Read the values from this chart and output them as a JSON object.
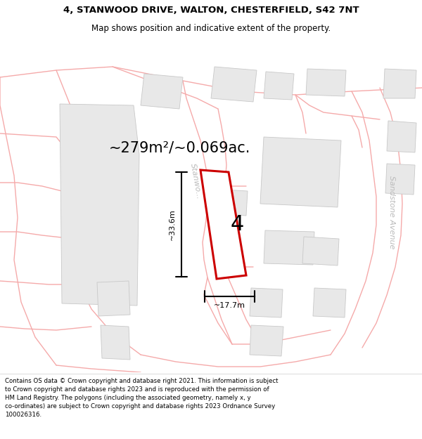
{
  "title_line1": "4, STANWOOD DRIVE, WALTON, CHESTERFIELD, S42 7NT",
  "title_line2": "Map shows position and indicative extent of the property.",
  "area_text": "~279m²/~0.069ac.",
  "measurement_v": "~33.6m",
  "measurement_h": "~17.7m",
  "plot_number": "4",
  "road_label_stanwood": "Stanwo...",
  "road_label_sandstone": "Sandstone Avenue",
  "plot_outline_color": "#cc0000",
  "road_line_color": "#f5aaaa",
  "road_line_color2": "#e8e8e8",
  "building_fill_color": "#e8e8e8",
  "building_outline_color": "#c8c8c8",
  "map_bg": "#ffffff",
  "title_bg": "#ffffff",
  "footer_bg": "#ffffff",
  "footer_lines": [
    "Contains OS data © Crown copyright and database right 2021. This information is subject",
    "to Crown copyright and database rights 2023 and is reproduced with the permission of",
    "HM Land Registry. The polygons (including the associated geometry, namely x, y",
    "co-ordinates) are subject to Crown copyright and database rights 2023 Ordnance Survey",
    "100026316."
  ],
  "title_fontsize": 9.5,
  "subtitle_fontsize": 8.5,
  "area_fontsize": 15,
  "plot_label_fontsize": 22,
  "measure_fontsize": 8,
  "road_label_fontsize": 8,
  "footer_fontsize": 6.2
}
